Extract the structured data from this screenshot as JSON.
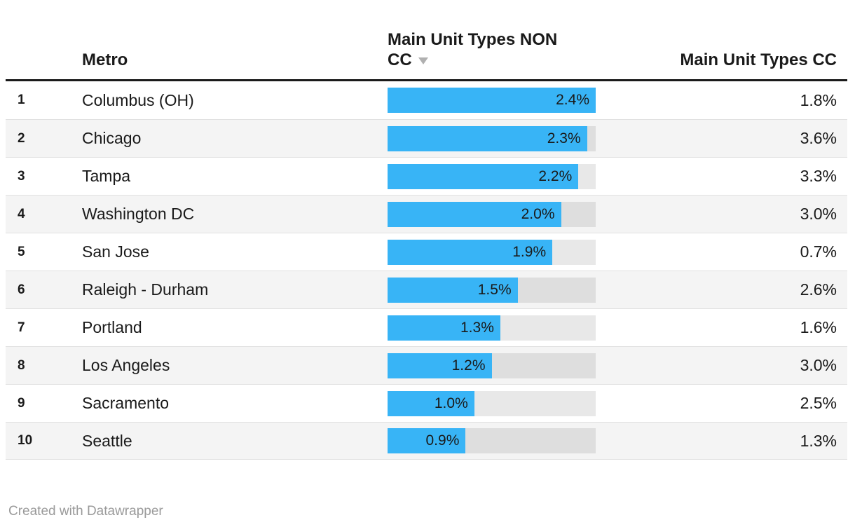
{
  "header": {
    "rank_label": "",
    "metro_label": "Metro",
    "non_cc": {
      "full_label": "Main Unit Types NON CC",
      "line1": "Main Unit Types NON",
      "line2": "CC",
      "sorted": "descending"
    },
    "cc_label": "Main Unit Types CC"
  },
  "footer": {
    "credit": "Created with Datawrapper"
  },
  "colors": {
    "bar_fill": "#38b4f6",
    "bar_track": "rgba(0,0,0,0.09)",
    "row_stripe": "#f4f4f4",
    "header_rule": "#1a1a1a",
    "text": "#1a1a1a",
    "sort_arrow": "#b0b0b0",
    "credit_text": "#9a9a9a"
  },
  "chart_data": {
    "type": "table",
    "title": "",
    "columns": [
      "",
      "Metro",
      "Main Unit Types NON CC",
      "Main Unit Types CC"
    ],
    "bar_column": "Main Unit Types NON CC",
    "bar_axis_max": 2.4,
    "value_suffix": "%",
    "sort": {
      "column": "Main Unit Types NON CC",
      "direction": "desc"
    },
    "rows": [
      {
        "rank": "1",
        "metro": "Columbus (OH)",
        "non_cc": 2.4,
        "cc": 1.8
      },
      {
        "rank": "2",
        "metro": "Chicago",
        "non_cc": 2.3,
        "cc": 3.6
      },
      {
        "rank": "3",
        "metro": "Tampa",
        "non_cc": 2.2,
        "cc": 3.3
      },
      {
        "rank": "4",
        "metro": "Washington DC",
        "non_cc": 2.0,
        "cc": 3.0
      },
      {
        "rank": "5",
        "metro": "San Jose",
        "non_cc": 1.9,
        "cc": 0.7
      },
      {
        "rank": "6",
        "metro": "Raleigh - Durham",
        "non_cc": 1.5,
        "cc": 2.6
      },
      {
        "rank": "7",
        "metro": "Portland",
        "non_cc": 1.3,
        "cc": 1.6
      },
      {
        "rank": "8",
        "metro": "Los Angeles",
        "non_cc": 1.2,
        "cc": 3.0
      },
      {
        "rank": "9",
        "metro": "Sacramento",
        "non_cc": 1.0,
        "cc": 2.5
      },
      {
        "rank": "10",
        "metro": "Seattle",
        "non_cc": 0.9,
        "cc": 1.3
      }
    ]
  }
}
